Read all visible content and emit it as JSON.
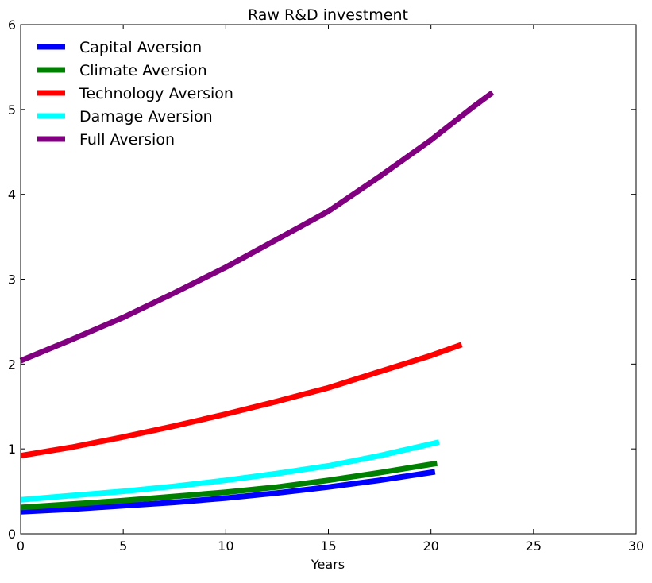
{
  "chart_data": {
    "type": "line",
    "title": "Raw R&D investment",
    "xlabel": "Years",
    "ylabel": "",
    "xlim": [
      0,
      30
    ],
    "ylim": [
      0,
      6
    ],
    "xticks": [
      0,
      5,
      10,
      15,
      20,
      25,
      30
    ],
    "yticks": [
      0,
      1,
      2,
      3,
      4,
      5,
      6
    ],
    "grid": false,
    "legend_position": "top-left",
    "series": [
      {
        "name": "Capital Aversion",
        "color": "#0000ff",
        "points": [
          [
            0,
            0.26
          ],
          [
            2.5,
            0.29
          ],
          [
            5,
            0.33
          ],
          [
            7.5,
            0.37
          ],
          [
            10,
            0.42
          ],
          [
            12.5,
            0.48
          ],
          [
            15,
            0.55
          ],
          [
            17.5,
            0.63
          ],
          [
            20.2,
            0.73
          ]
        ]
      },
      {
        "name": "Climate Aversion",
        "color": "#008000",
        "points": [
          [
            0,
            0.31
          ],
          [
            2.5,
            0.35
          ],
          [
            5,
            0.39
          ],
          [
            7.5,
            0.44
          ],
          [
            10,
            0.49
          ],
          [
            12.5,
            0.55
          ],
          [
            15,
            0.63
          ],
          [
            17.5,
            0.72
          ],
          [
            20.3,
            0.83
          ]
        ]
      },
      {
        "name": "Technology Aversion",
        "color": "#ff0000",
        "points": [
          [
            0,
            0.92
          ],
          [
            2.5,
            1.02
          ],
          [
            5,
            1.14
          ],
          [
            7.5,
            1.27
          ],
          [
            10,
            1.41
          ],
          [
            12.5,
            1.56
          ],
          [
            15,
            1.72
          ],
          [
            17.5,
            1.91
          ],
          [
            20,
            2.1
          ],
          [
            21.5,
            2.23
          ]
        ]
      },
      {
        "name": "Damage Aversion",
        "color": "#00ffff",
        "points": [
          [
            0,
            0.4
          ],
          [
            2.5,
            0.45
          ],
          [
            5,
            0.5
          ],
          [
            7.5,
            0.56
          ],
          [
            10,
            0.63
          ],
          [
            12.5,
            0.71
          ],
          [
            15,
            0.8
          ],
          [
            17.5,
            0.92
          ],
          [
            20.4,
            1.08
          ]
        ]
      },
      {
        "name": "Full Aversion",
        "color": "#800080",
        "points": [
          [
            0,
            2.04
          ],
          [
            2.5,
            2.29
          ],
          [
            5,
            2.55
          ],
          [
            7.5,
            2.84
          ],
          [
            10,
            3.14
          ],
          [
            12.5,
            3.47
          ],
          [
            15,
            3.8
          ],
          [
            17.5,
            4.21
          ],
          [
            20,
            4.64
          ],
          [
            22,
            5.02
          ],
          [
            23,
            5.2
          ]
        ]
      }
    ]
  }
}
